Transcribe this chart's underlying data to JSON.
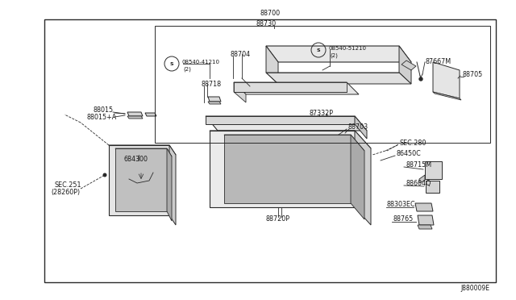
{
  "bg_color": "#ffffff",
  "line_color": "#2a2a2a",
  "text_color": "#1a1a1a",
  "font_size": 5.8,
  "title": "88700",
  "diagram_id": "J880009E",
  "inner_label": "88730"
}
